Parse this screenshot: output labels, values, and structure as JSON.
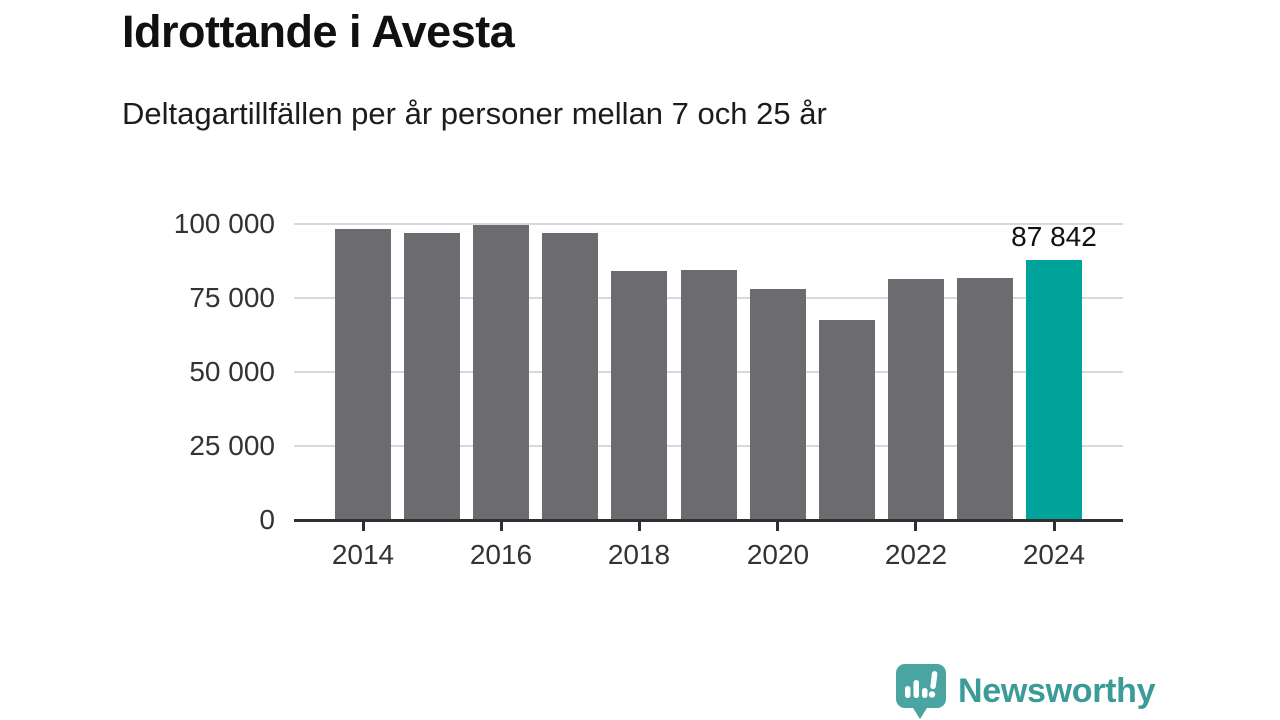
{
  "header": {
    "title": "Idrottande i Avesta",
    "subtitle": "Deltagartillfällen per år personer mellan 7 och 25 år"
  },
  "chart_data": {
    "type": "bar",
    "title": "Idrottande i Avesta",
    "subtitle": "Deltagartillfällen per år personer mellan 7 och 25 år",
    "categories": [
      "2014",
      "2015",
      "2016",
      "2017",
      "2018",
      "2019",
      "2020",
      "2021",
      "2022",
      "2023",
      "2024"
    ],
    "values": [
      98300,
      96800,
      99700,
      97100,
      84000,
      84300,
      78000,
      67700,
      81400,
      81900,
      87842
    ],
    "highlight_index": 10,
    "highlight_label": "87 842",
    "x_tick_labels": [
      "2014",
      "2016",
      "2018",
      "2020",
      "2022",
      "2024"
    ],
    "x_tick_indices": [
      0,
      2,
      4,
      6,
      8,
      10
    ],
    "y_tick_values": [
      0,
      25000,
      50000,
      75000,
      100000
    ],
    "y_tick_labels": [
      "0",
      "25 000",
      "50 000",
      "75 000",
      "100 000"
    ],
    "ylim": [
      0,
      100000
    ],
    "grid": "horizontal",
    "legend": "none",
    "colors": {
      "bar": "#6c6b70",
      "highlight": "#00a39a",
      "gridline": "#d9d9d9",
      "axis_line": "#2f2f2f",
      "tick_text": "#333333",
      "value_label_text": "#111111"
    }
  },
  "footer": {
    "brand": "Newsworthy",
    "logo_icon": "bar-chart-speech-bubble-icon",
    "brand_color": "#3b9b97",
    "icon_color": "#4aa5a2"
  }
}
